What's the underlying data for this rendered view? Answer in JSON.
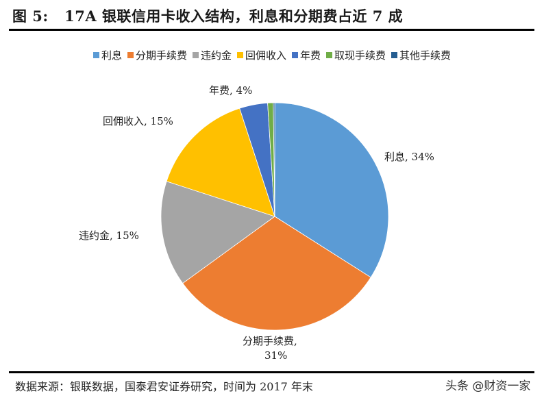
{
  "header": {
    "title": "图 5:   17A 银联信用卡收入结构，利息和分期费占近 7 成"
  },
  "legend": {
    "items": [
      {
        "label": "利息",
        "color": "#5B9BD5"
      },
      {
        "label": "分期手续费",
        "color": "#ED7D31"
      },
      {
        "label": "违约金",
        "color": "#A5A5A5"
      },
      {
        "label": "回佣收入",
        "color": "#FFC000"
      },
      {
        "label": "年费",
        "color": "#4472C4"
      },
      {
        "label": "取现手续费",
        "color": "#70AD47"
      },
      {
        "label": "其他手续费",
        "color": "#255E91"
      }
    ]
  },
  "data_labels": {
    "interest": "利息, 34%",
    "installment_line1": "分期手续费,",
    "installment_line2": "31%",
    "penalty": "违约金, 15%",
    "rebate": "回佣收入, 15%",
    "annual_fee": "年费, 4%"
  },
  "footer": {
    "source": "数据来源：银联数据，国泰君安证券研究，时间为 2017 年末",
    "watermark": "头条 @财资一家"
  },
  "chart_data": {
    "type": "pie",
    "title": "17A 银联信用卡收入结构，利息和分期费占近 7 成",
    "categories": [
      "利息",
      "分期手续费",
      "违约金",
      "回佣收入",
      "年费",
      "取现手续费",
      "其他手续费"
    ],
    "values": [
      34,
      31,
      15,
      15,
      4,
      0.8,
      0.2
    ],
    "unit": "%",
    "colors": [
      "#5B9BD5",
      "#ED7D31",
      "#A5A5A5",
      "#FFC000",
      "#4472C4",
      "#70AD47",
      "#255E91"
    ],
    "data_labels_shown": [
      "利息, 34%",
      "分期手续费, 31%",
      "违约金, 15%",
      "回佣收入, 15%",
      "年费, 4%"
    ],
    "start_angle": "12 o'clock, clockwise",
    "legend_position": "top"
  }
}
